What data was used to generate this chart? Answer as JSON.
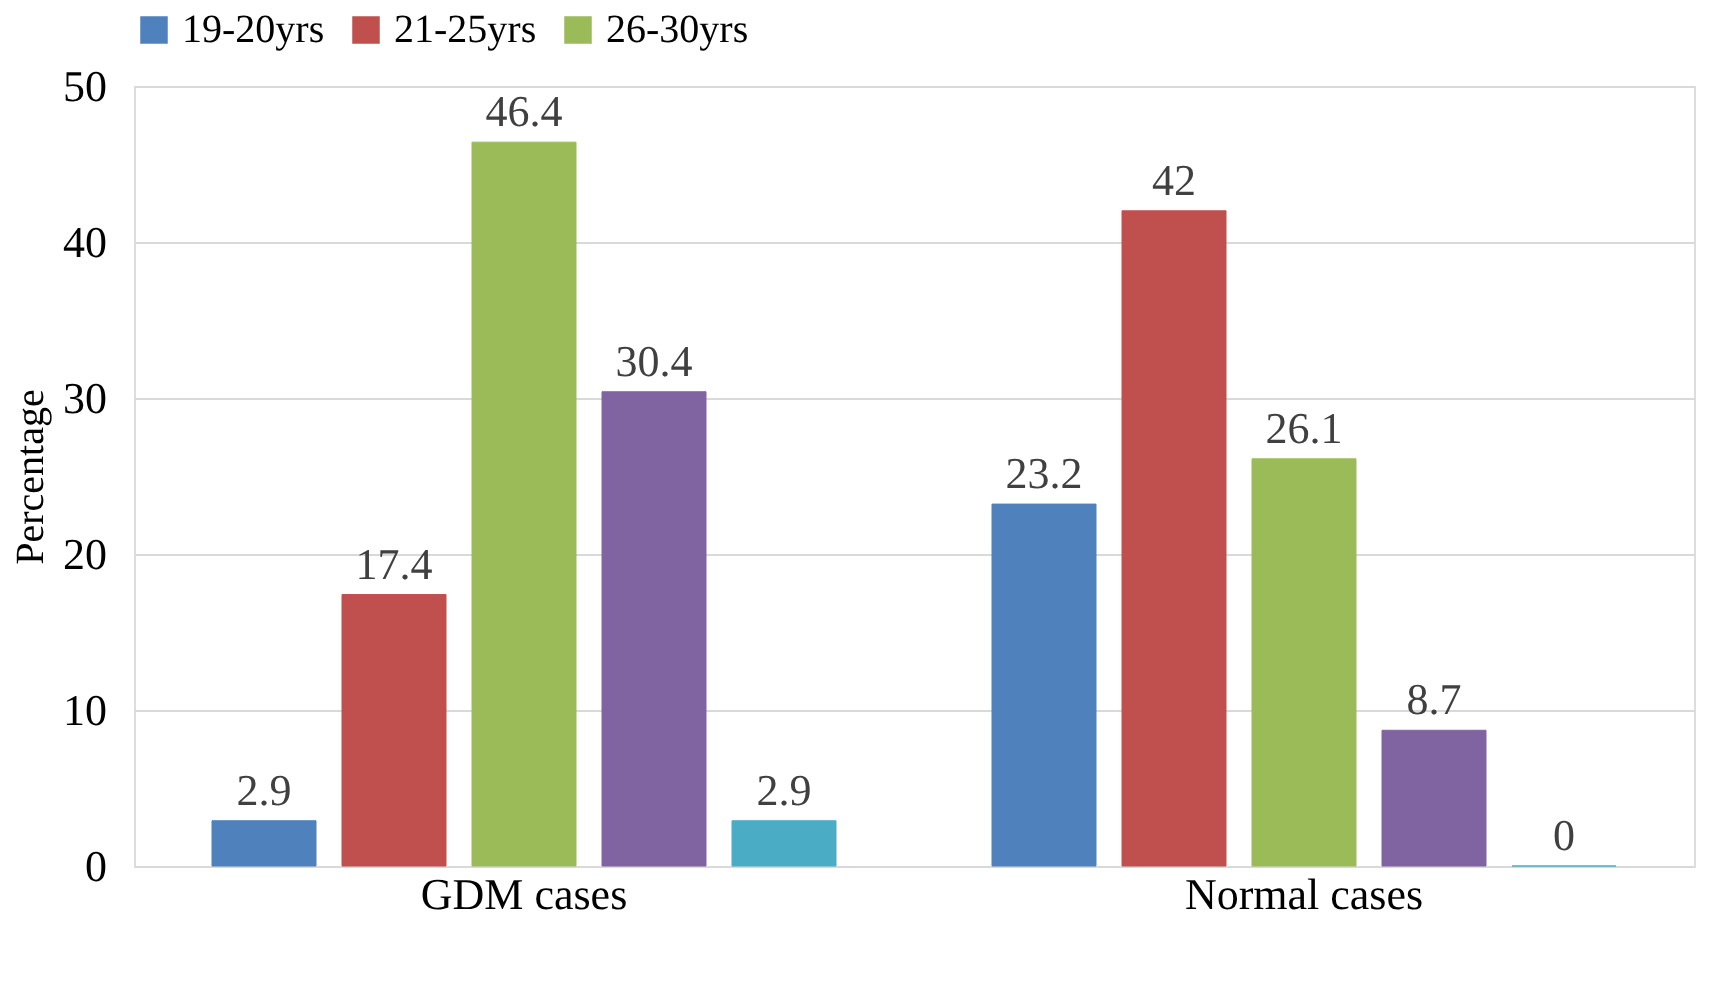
{
  "chart_data": {
    "type": "bar",
    "ylabel": "Percentage",
    "categories": [
      "GDM cases",
      "Normal cases"
    ],
    "series": [
      {
        "name": "19-20yrs",
        "color": "#4f81bd",
        "values": [
          2.9,
          23.2
        ]
      },
      {
        "name": "21-25yrs",
        "color": "#c0504d",
        "values": [
          17.4,
          42
        ]
      },
      {
        "name": "26-30yrs",
        "color": "#9bbb59",
        "values": [
          46.4,
          26.1
        ]
      },
      {
        "color": "#8064a2",
        "values": [
          30.4,
          8.7
        ]
      },
      {
        "color": "#4bacc6",
        "values": [
          2.9,
          0
        ]
      }
    ],
    "ylim": [
      0,
      50
    ],
    "yticks": [
      0,
      10,
      20,
      30,
      40,
      50
    ],
    "grid": "y",
    "legend": "top",
    "data_labels": true
  }
}
